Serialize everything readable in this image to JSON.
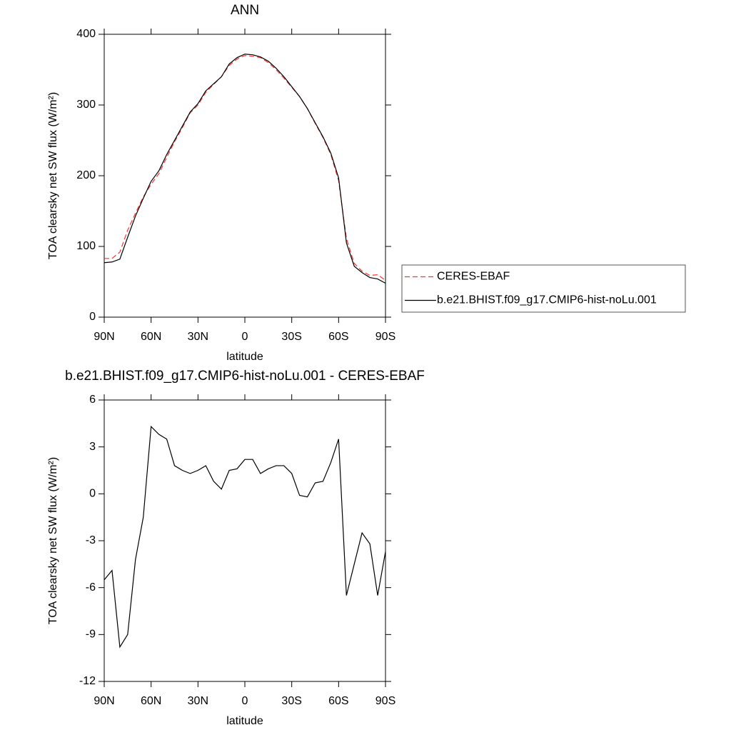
{
  "chart_data": [
    {
      "type": "line",
      "title": "ANN",
      "xlabel": "latitude",
      "ylabel": "TOA clearsky net SW flux (W/m²)",
      "x": [
        90,
        85,
        80,
        75,
        70,
        65,
        60,
        55,
        50,
        45,
        40,
        35,
        30,
        25,
        20,
        15,
        10,
        5,
        0,
        -5,
        -10,
        -15,
        -20,
        -25,
        -30,
        -35,
        -40,
        -45,
        -50,
        -55,
        -60,
        -65,
        -70,
        -75,
        -80,
        -85,
        -90
      ],
      "xlim": [
        90,
        -90
      ],
      "xticks": [
        {
          "value": 90,
          "label": "90N"
        },
        {
          "value": 60,
          "label": "60N"
        },
        {
          "value": 30,
          "label": "30N"
        },
        0,
        {
          "value": -30,
          "label": "30S"
        },
        {
          "value": -60,
          "label": "60S"
        },
        {
          "value": -90,
          "label": "90S"
        }
      ],
      "ylim": [
        0,
        400
      ],
      "yticks": [
        0,
        100,
        200,
        300,
        400
      ],
      "legend": "right",
      "series": [
        {
          "name": "CERES-EBAF",
          "color": "#ff3030",
          "style": "dashed",
          "values": [
            83,
            83,
            92,
            123,
            147,
            170,
            188,
            203,
            226,
            248,
            268,
            289,
            300,
            318,
            329,
            340,
            356,
            365,
            370,
            369,
            367,
            360,
            350,
            338,
            325,
            312,
            295,
            274,
            254,
            230,
            193,
            111,
            76,
            65,
            59,
            60,
            52
          ]
        },
        {
          "name": "b.e21.BHIST.f09_g17.CMIP6-hist-noLu.001",
          "color": "#000000",
          "style": "solid",
          "values": [
            77,
            78,
            82,
            113,
            143,
            168,
            192,
            207,
            230,
            250,
            270,
            290,
            302,
            320,
            330,
            340,
            358,
            367,
            372,
            371,
            368,
            362,
            352,
            340,
            326,
            312,
            295,
            275,
            255,
            232,
            197,
            105,
            72,
            63,
            56,
            54,
            48
          ]
        }
      ]
    },
    {
      "type": "line",
      "title": "b.e21.BHIST.f09_g17.CMIP6-hist-noLu.001 - CERES-EBAF",
      "xlabel": "latitude",
      "ylabel": "TOA clearsky net SW flux (W/m²)",
      "x": [
        90,
        85,
        80,
        75,
        70,
        65,
        60,
        55,
        50,
        45,
        40,
        35,
        30,
        25,
        20,
        15,
        10,
        5,
        0,
        -5,
        -10,
        -15,
        -20,
        -25,
        -30,
        -35,
        -40,
        -45,
        -50,
        -55,
        -60,
        -65,
        -70,
        -75,
        -80,
        -85,
        -90
      ],
      "xlim": [
        90,
        -90
      ],
      "xticks": [
        {
          "value": 90,
          "label": "90N"
        },
        {
          "value": 60,
          "label": "60N"
        },
        {
          "value": 30,
          "label": "30N"
        },
        0,
        {
          "value": -30,
          "label": "30S"
        },
        {
          "value": -60,
          "label": "60S"
        },
        {
          "value": -90,
          "label": "90S"
        }
      ],
      "ylim": [
        -12,
        6
      ],
      "yticks": [
        -12,
        -9,
        -6,
        -3,
        0,
        3,
        6
      ],
      "color": "#000000",
      "values": [
        -5.5,
        -4.9,
        -9.8,
        -9,
        -4.2,
        -1.5,
        4.3,
        3.8,
        3.5,
        1.8,
        1.5,
        1.3,
        1.5,
        1.8,
        0.8,
        0.3,
        1.5,
        1.6,
        2.2,
        2.2,
        1.3,
        1.6,
        1.8,
        1.8,
        1.3,
        -0.1,
        -0.2,
        0.7,
        0.8,
        2.0,
        3.5,
        -6.5,
        -4.5,
        -2.5,
        -3.2,
        -6.5,
        -3.7
      ]
    }
  ]
}
